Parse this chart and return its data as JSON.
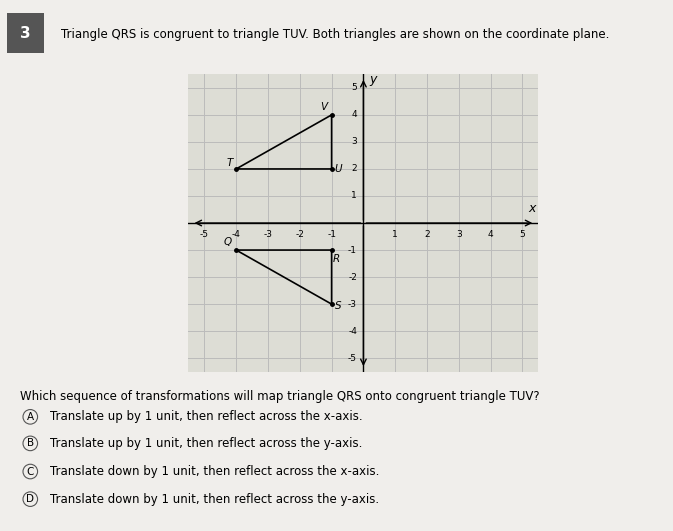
{
  "title_text": "Triangle QRS is congruent to triangle TUV. Both triangles are shown on the coordinate plane.",
  "question_num": "3",
  "triangle_QRS": {
    "Q": [
      -4,
      -1
    ],
    "R": [
      -1,
      -1
    ],
    "S": [
      -1,
      -3
    ]
  },
  "triangle_TUV": {
    "T": [
      -4,
      2
    ],
    "U": [
      -1,
      2
    ],
    "V": [
      -1,
      4
    ]
  },
  "axis_xlim": [
    -5.5,
    5.5
  ],
  "axis_ylim": [
    -5.5,
    5.5
  ],
  "grid_color": "#bbbbbb",
  "triangle_color": "#000000",
  "question": "Which sequence of transformations will map triangle QRS onto congruent triangle TUV?",
  "choices": [
    {
      "letter": "A",
      "text": "Translate up by 1 unit, then reflect across the x-axis."
    },
    {
      "letter": "B",
      "text": "Translate up by 1 unit, then reflect across the y-axis."
    },
    {
      "letter": "C",
      "text": "Translate down by 1 unit, then reflect across the x-axis."
    },
    {
      "letter": "D",
      "text": "Translate down by 1 unit, then reflect across the y-axis."
    }
  ],
  "bg_color": "#f0eeeb",
  "plot_bg_color": "#ddddd5"
}
